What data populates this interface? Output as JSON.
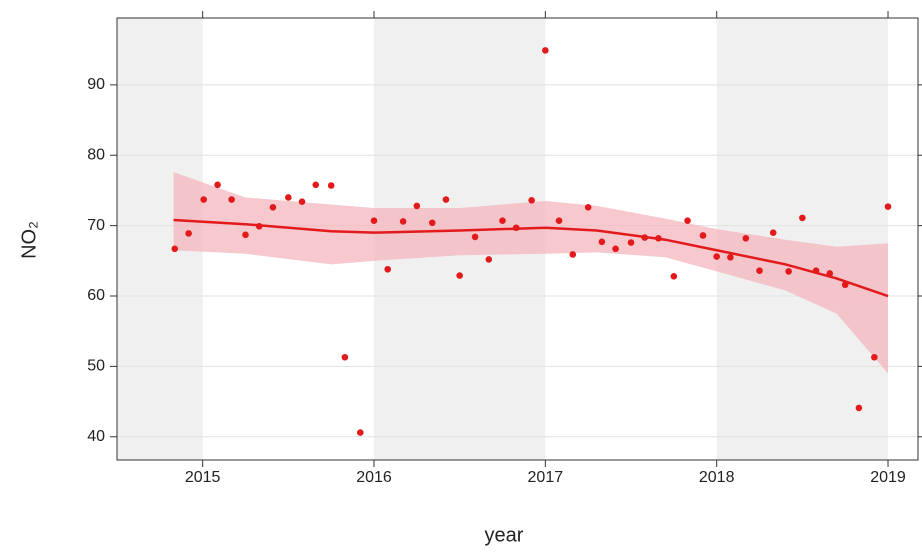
{
  "chart_data": {
    "type": "scatter",
    "x": [
      2014.837,
      2014.918,
      2015.006,
      2015.087,
      2015.169,
      2015.25,
      2015.33,
      2015.41,
      2015.5,
      2015.58,
      2015.66,
      2015.75,
      2015.83,
      2015.92,
      2016.0,
      2016.08,
      2016.17,
      2016.25,
      2016.34,
      2016.42,
      2016.5,
      2016.59,
      2016.67,
      2016.75,
      2016.83,
      2016.92,
      2017.0,
      2017.08,
      2017.16,
      2017.25,
      2017.33,
      2017.41,
      2017.5,
      2017.58,
      2017.66,
      2017.75,
      2017.83,
      2017.92,
      2018.0,
      2018.08,
      2018.17,
      2018.25,
      2018.33,
      2018.42,
      2018.5,
      2018.58,
      2018.66,
      2018.75,
      2018.83,
      2018.92,
      2019.0
    ],
    "values": [
      66.7,
      68.9,
      73.7,
      75.8,
      73.7,
      68.7,
      69.9,
      72.6,
      74.0,
      73.4,
      75.8,
      75.7,
      51.3,
      40.6,
      70.7,
      63.8,
      70.6,
      72.8,
      70.4,
      73.7,
      62.9,
      68.4,
      65.2,
      70.7,
      69.7,
      73.6,
      94.9,
      70.7,
      65.9,
      72.6,
      67.7,
      66.7,
      67.6,
      68.3,
      68.2,
      62.8,
      70.7,
      68.6,
      65.6,
      65.5,
      68.2,
      63.6,
      69.0,
      63.5,
      71.1,
      63.6,
      63.2,
      61.6,
      44.1,
      51.3,
      72.7
    ],
    "color": "#e31a1c",
    "smooth": {
      "x": [
        2014.83,
        2015.25,
        2015.75,
        2016.0,
        2016.5,
        2017.0,
        2017.3,
        2017.7,
        2018.0,
        2018.4,
        2018.7,
        2019.0
      ],
      "values": [
        70.8,
        70.2,
        69.2,
        69.0,
        69.3,
        69.7,
        69.3,
        68.0,
        66.5,
        64.5,
        62.5,
        60.0
      ],
      "lower": [
        66.5,
        66.0,
        64.5,
        65.0,
        65.8,
        66.0,
        66.2,
        65.5,
        63.5,
        60.8,
        57.5,
        49.0
      ],
      "upper": [
        77.6,
        74.0,
        73.0,
        72.5,
        72.5,
        73.5,
        72.8,
        71.0,
        69.5,
        68.0,
        67.0,
        67.5
      ],
      "color": "#e31a1c",
      "band_color": "#f4b6bd"
    },
    "xlabel": "year",
    "ylabel": "NO₂",
    "xlim": [
      2014.5,
      2019.175
    ],
    "ylim": [
      36.7,
      99.5
    ],
    "xticks": [
      2015,
      2016,
      2017,
      2018,
      2019
    ],
    "yticks": [
      40,
      50,
      60,
      70,
      80,
      90
    ],
    "grid": true
  }
}
